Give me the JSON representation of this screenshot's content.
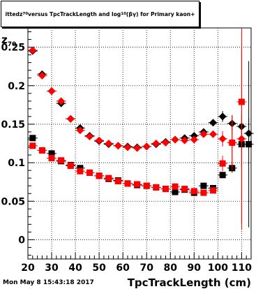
{
  "title": {
    "prefix": "itted ",
    "symbol": "z",
    "sub": "70",
    "mid": " versus TpcTrackLength and log",
    "sub2": "10",
    "suffix": "(βγ) for Primary kaon+"
  },
  "ylabel": {
    "symbol": "z",
    "sub": "70"
  },
  "xlabel": "TpcTrackLength (cm)",
  "datestamp": "Mon May  8 15:43:18 2017",
  "chart_data": {
    "type": "scatter",
    "xlabel": "TpcTrackLength (cm)",
    "ylabel": "z70",
    "xlim": [
      20,
      114
    ],
    "ylim": [
      -0.025,
      0.275
    ],
    "xticks": [
      20,
      30,
      40,
      50,
      60,
      70,
      80,
      90,
      100,
      110
    ],
    "yticks": [
      0,
      0.05,
      0.1,
      0.15,
      0.2,
      0.25
    ],
    "ytick_labels": [
      "0",
      "0.05",
      "0.1",
      "0.15",
      "0.2",
      "0.25"
    ],
    "grid": true,
    "series": [
      {
        "marker": "diamond",
        "color": "#000000",
        "x": [
          22,
          26,
          30,
          34,
          38,
          42,
          46,
          50,
          54,
          58,
          62,
          66,
          70,
          74,
          78,
          82,
          86,
          90,
          94,
          98,
          102,
          106,
          110,
          113
        ],
        "y": [
          0.245,
          0.215,
          0.193,
          0.177,
          0.157,
          0.145,
          0.135,
          0.128,
          0.124,
          0.122,
          0.121,
          0.12,
          0.121,
          0.124,
          0.127,
          0.13,
          0.132,
          0.135,
          0.14,
          0.152,
          0.16,
          0.151,
          0.147,
          0.138
        ],
        "yerr": [
          0.002,
          0.002,
          0.002,
          0.002,
          0.002,
          0.002,
          0.002,
          0.002,
          0.002,
          0.002,
          0.002,
          0.002,
          0.002,
          0.002,
          0.002,
          0.002,
          0.002,
          0.002,
          0.003,
          0.004,
          0.007,
          0.01,
          0.015,
          0.02
        ]
      },
      {
        "marker": "square",
        "color": "#000000",
        "x": [
          22,
          26,
          30,
          34,
          38,
          42,
          46,
          50,
          54,
          58,
          62,
          66,
          70,
          74,
          78,
          82,
          86,
          90,
          94,
          98,
          102,
          106,
          110,
          113
        ],
        "y": [
          0.132,
          0.116,
          0.112,
          0.102,
          0.097,
          0.093,
          0.087,
          0.083,
          0.079,
          0.077,
          0.073,
          0.071,
          0.07,
          0.068,
          0.066,
          0.062,
          0.065,
          0.061,
          0.07,
          0.067,
          0.084,
          0.093,
          0.124,
          0.124
        ],
        "yerr": [
          0.002,
          0.002,
          0.002,
          0.002,
          0.002,
          0.002,
          0.002,
          0.002,
          0.002,
          0.002,
          0.002,
          0.002,
          0.002,
          0.002,
          0.002,
          0.002,
          0.002,
          0.002,
          0.002,
          0.003,
          0.004,
          0.006,
          0.03,
          0.108
        ]
      },
      {
        "marker": "diamond",
        "color": "#ff0000",
        "x": [
          22,
          26,
          30,
          34,
          38,
          42,
          46,
          50,
          54,
          58,
          62,
          66,
          70,
          74,
          78,
          82,
          86,
          90,
          94,
          98,
          102,
          106,
          110
        ],
        "y": [
          0.246,
          0.213,
          0.193,
          0.18,
          0.157,
          0.142,
          0.134,
          0.129,
          0.125,
          0.122,
          0.12,
          0.119,
          0.121,
          0.125,
          0.126,
          0.13,
          0.129,
          0.13,
          0.137,
          0.137,
          0.131,
          0.126,
          0.131
        ],
        "yerr": [
          0.002,
          0.002,
          0.002,
          0.002,
          0.002,
          0.002,
          0.002,
          0.002,
          0.002,
          0.002,
          0.002,
          0.002,
          0.002,
          0.002,
          0.002,
          0.002,
          0.002,
          0.002,
          0.002,
          0.003,
          0.01,
          0.036,
          0.118
        ]
      },
      {
        "marker": "square",
        "color": "#ff0000",
        "x": [
          22,
          26,
          30,
          34,
          38,
          42,
          46,
          50,
          54,
          58,
          62,
          66,
          70,
          74,
          78,
          82,
          86,
          90,
          94,
          98,
          102,
          106,
          110
        ],
        "y": [
          0.122,
          0.116,
          0.106,
          0.103,
          0.096,
          0.089,
          0.087,
          0.083,
          0.08,
          0.076,
          0.073,
          0.072,
          0.07,
          0.068,
          0.066,
          0.069,
          0.066,
          0.063,
          0.061,
          0.064,
          0.099,
          0.126,
          0.179
        ],
        "yerr": [
          0.002,
          0.002,
          0.002,
          0.002,
          0.002,
          0.002,
          0.002,
          0.002,
          0.002,
          0.002,
          0.002,
          0.002,
          0.002,
          0.002,
          0.002,
          0.002,
          0.002,
          0.002,
          0.002,
          0.003,
          0.01,
          0.03,
          0.158
        ]
      }
    ]
  }
}
